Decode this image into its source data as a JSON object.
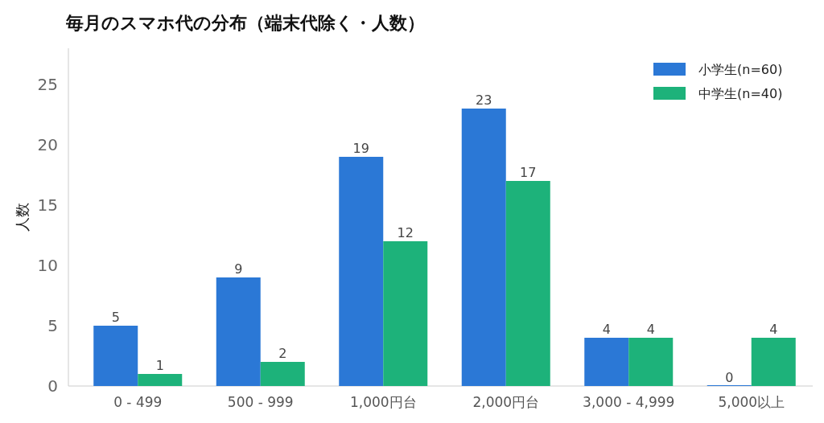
{
  "chart_data": {
    "type": "bar",
    "title": "毎月のスマホ代の分布（端末代除く・人数）",
    "ylabel": "人数",
    "categories": [
      "0 - 499",
      "500 - 999",
      "1,000円台",
      "2,000円台",
      "3,000 - 4,999",
      "5,000以上"
    ],
    "series": [
      {
        "name": "小学生(n=60)",
        "color": "#2b78d6",
        "values": [
          5,
          9,
          19,
          23,
          4,
          0
        ]
      },
      {
        "name": "中学生(n=40)",
        "color": "#1db27a",
        "values": [
          1,
          2,
          12,
          17,
          4,
          4
        ]
      }
    ],
    "ylim": [
      0,
      28
    ],
    "yticks": [
      0,
      5,
      10,
      15,
      20,
      25
    ],
    "data_labels": true,
    "legend": "top right",
    "grid": false
  }
}
